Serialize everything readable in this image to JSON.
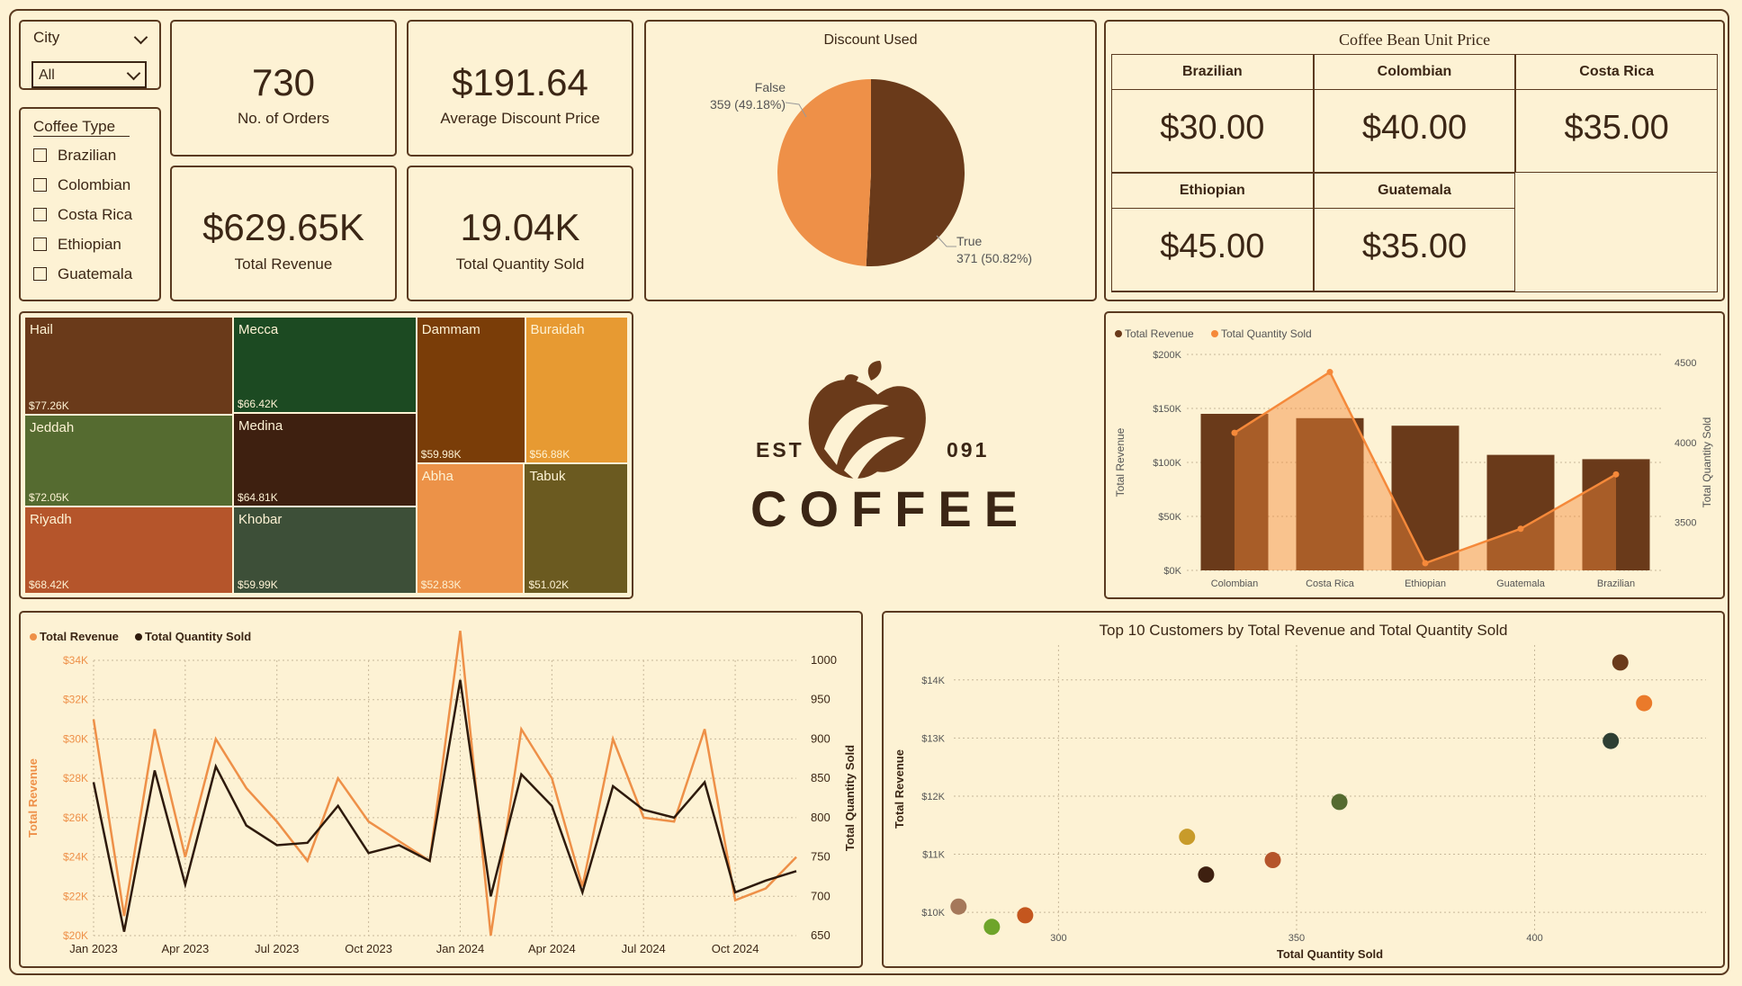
{
  "slicers": {
    "city": {
      "title": "City",
      "selected": "All"
    },
    "coffee_type": {
      "title": "Coffee Type",
      "options": [
        "Brazilian",
        "Colombian",
        "Costa Rica",
        "Ethiopian",
        "Guatemala"
      ]
    }
  },
  "kpis": {
    "orders": {
      "value": "730",
      "label": "No. of Orders"
    },
    "avg_discount": {
      "value": "$191.64",
      "label": "Average Discount Price"
    },
    "revenue": {
      "value": "$629.65K",
      "label": "Total Revenue"
    },
    "quantity": {
      "value": "19.04K",
      "label": "Total Quantity Sold"
    }
  },
  "unit_price": {
    "title": "Coffee Bean Unit Price",
    "items": [
      {
        "name": "Brazilian",
        "price": "$30.00"
      },
      {
        "name": "Colombian",
        "price": "$40.00"
      },
      {
        "name": "Costa Rica",
        "price": "$35.00"
      },
      {
        "name": "Ethiopian",
        "price": "$45.00"
      },
      {
        "name": "Guatemala",
        "price": "$35.00"
      }
    ]
  },
  "logo": {
    "est": "EST",
    "number": "091",
    "word": "COFFEE"
  },
  "colors": {
    "bg": "#fdf2d4",
    "border": "#5a3a20",
    "dark_brown": "#6a3a1a",
    "orange": "#ee9048",
    "line_orange": "#f5893a",
    "text": "#3b2615"
  },
  "chart_data": [
    {
      "type": "pie",
      "title": "Discount Used",
      "slices": [
        {
          "label": "False",
          "value": 359,
          "text": "359 (49.18%)",
          "color": "#ee9048"
        },
        {
          "label": "True",
          "value": 371,
          "text": "371 (50.82%)",
          "color": "#6a3a1a"
        }
      ]
    },
    {
      "type": "treemap",
      "items": [
        {
          "name": "Hail",
          "value": 77.26,
          "label": "$77.26K",
          "color": "#6a3a1a"
        },
        {
          "name": "Jeddah",
          "value": 72.05,
          "label": "$72.05K",
          "color": "#556b30"
        },
        {
          "name": "Riyadh",
          "value": 68.42,
          "label": "$68.42K",
          "color": "#b5552b"
        },
        {
          "name": "Mecca",
          "value": 66.42,
          "label": "$66.42K",
          "color": "#1c4a22"
        },
        {
          "name": "Medina",
          "value": 64.81,
          "label": "$64.81K",
          "color": "#3e2010"
        },
        {
          "name": "Khobar",
          "value": 59.99,
          "label": "$59.99K",
          "color": "#3d4f38"
        },
        {
          "name": "Dammam",
          "value": 59.98,
          "label": "$59.98K",
          "color": "#7a3d08"
        },
        {
          "name": "Buraidah",
          "value": 56.88,
          "label": "$56.88K",
          "color": "#e79a32"
        },
        {
          "name": "Abha",
          "value": 52.83,
          "label": "$52.83K",
          "color": "#ec9248"
        },
        {
          "name": "Tabuk",
          "value": 51.02,
          "label": "$51.02K",
          "color": "#6b5a20"
        }
      ]
    },
    {
      "type": "bar",
      "legend": [
        "Total Revenue",
        "Total Quantity Sold"
      ],
      "categories": [
        "Colombian",
        "Costa Rica",
        "Ethiopian",
        "Guatemala",
        "Brazilian"
      ],
      "series": [
        {
          "name": "Total Revenue",
          "values": [
            145000,
            141000,
            134000,
            107000,
            103000
          ]
        },
        {
          "name": "Total Quantity Sold",
          "values": [
            4060,
            4440,
            3245,
            3460,
            3800
          ]
        }
      ],
      "ylabel": "Total Revenue",
      "y2label": "Total Quantity Sold",
      "yticks": [
        "$0K",
        "$50K",
        "$100K",
        "$150K",
        "$200K"
      ],
      "ylim": [
        0,
        200000
      ],
      "y2ticks": [
        "3500",
        "4000",
        "4500"
      ],
      "y2lim": [
        3200,
        4550
      ]
    },
    {
      "type": "line",
      "legend": [
        "Total Revenue",
        "Total Quantity Sold"
      ],
      "xticks": [
        "Jan 2023",
        "Apr 2023",
        "Jul 2023",
        "Oct 2023",
        "Jan 2024",
        "Apr 2024",
        "Jul 2024",
        "Oct 2024"
      ],
      "series": [
        {
          "name": "Total Revenue",
          "values": [
            31000,
            21000,
            30500,
            24000,
            30000,
            27500,
            25800,
            23800,
            28000,
            25800,
            24800,
            23800,
            35500,
            20000,
            30500,
            28000,
            22500,
            30000,
            26000,
            25800,
            30500,
            21800,
            22400,
            24000
          ]
        },
        {
          "name": "Total Quantity Sold",
          "values": [
            845,
            655,
            860,
            715,
            865,
            790,
            765,
            768,
            815,
            755,
            765,
            745,
            975,
            700,
            855,
            815,
            705,
            840,
            810,
            800,
            845,
            705,
            720,
            732
          ]
        }
      ],
      "ylabel": "Total Revenue",
      "y2label": "Total Quantity Sold",
      "yticks": [
        "$20K",
        "$22K",
        "$24K",
        "$26K",
        "$28K",
        "$30K",
        "$32K",
        "$34K"
      ],
      "ylim": [
        20000,
        34000
      ],
      "y2ticks": [
        "650",
        "700",
        "750",
        "800",
        "850",
        "900",
        "950",
        "1000"
      ],
      "y2lim": [
        650,
        1000
      ]
    },
    {
      "type": "scatter",
      "title": "Top 10 Customers by Total Revenue and Total Quantity Sold",
      "xlabel": "Total Quantity Sold",
      "ylabel": "Total Revenue",
      "xticks": [
        "300",
        "350",
        "400"
      ],
      "yticks": [
        "$10K",
        "$11K",
        "$12K",
        "$13K",
        "$14K"
      ],
      "xlim": [
        278,
        436
      ],
      "ylim": [
        9600,
        14600
      ],
      "points": [
        {
          "x": 418,
          "y": 14300,
          "color": "#6a3a1a"
        },
        {
          "x": 423,
          "y": 13600,
          "color": "#ea7a2a"
        },
        {
          "x": 416,
          "y": 12950,
          "color": "#2e3f33"
        },
        {
          "x": 359,
          "y": 11900,
          "color": "#556b30"
        },
        {
          "x": 327,
          "y": 11300,
          "color": "#c89b2a"
        },
        {
          "x": 345,
          "y": 10900,
          "color": "#b5552b"
        },
        {
          "x": 331,
          "y": 10650,
          "color": "#3e2010"
        },
        {
          "x": 279,
          "y": 10100,
          "color": "#a5785a"
        },
        {
          "x": 286,
          "y": 9750,
          "color": "#6ea42a"
        },
        {
          "x": 293,
          "y": 9950,
          "color": "#c4561e"
        }
      ]
    }
  ]
}
